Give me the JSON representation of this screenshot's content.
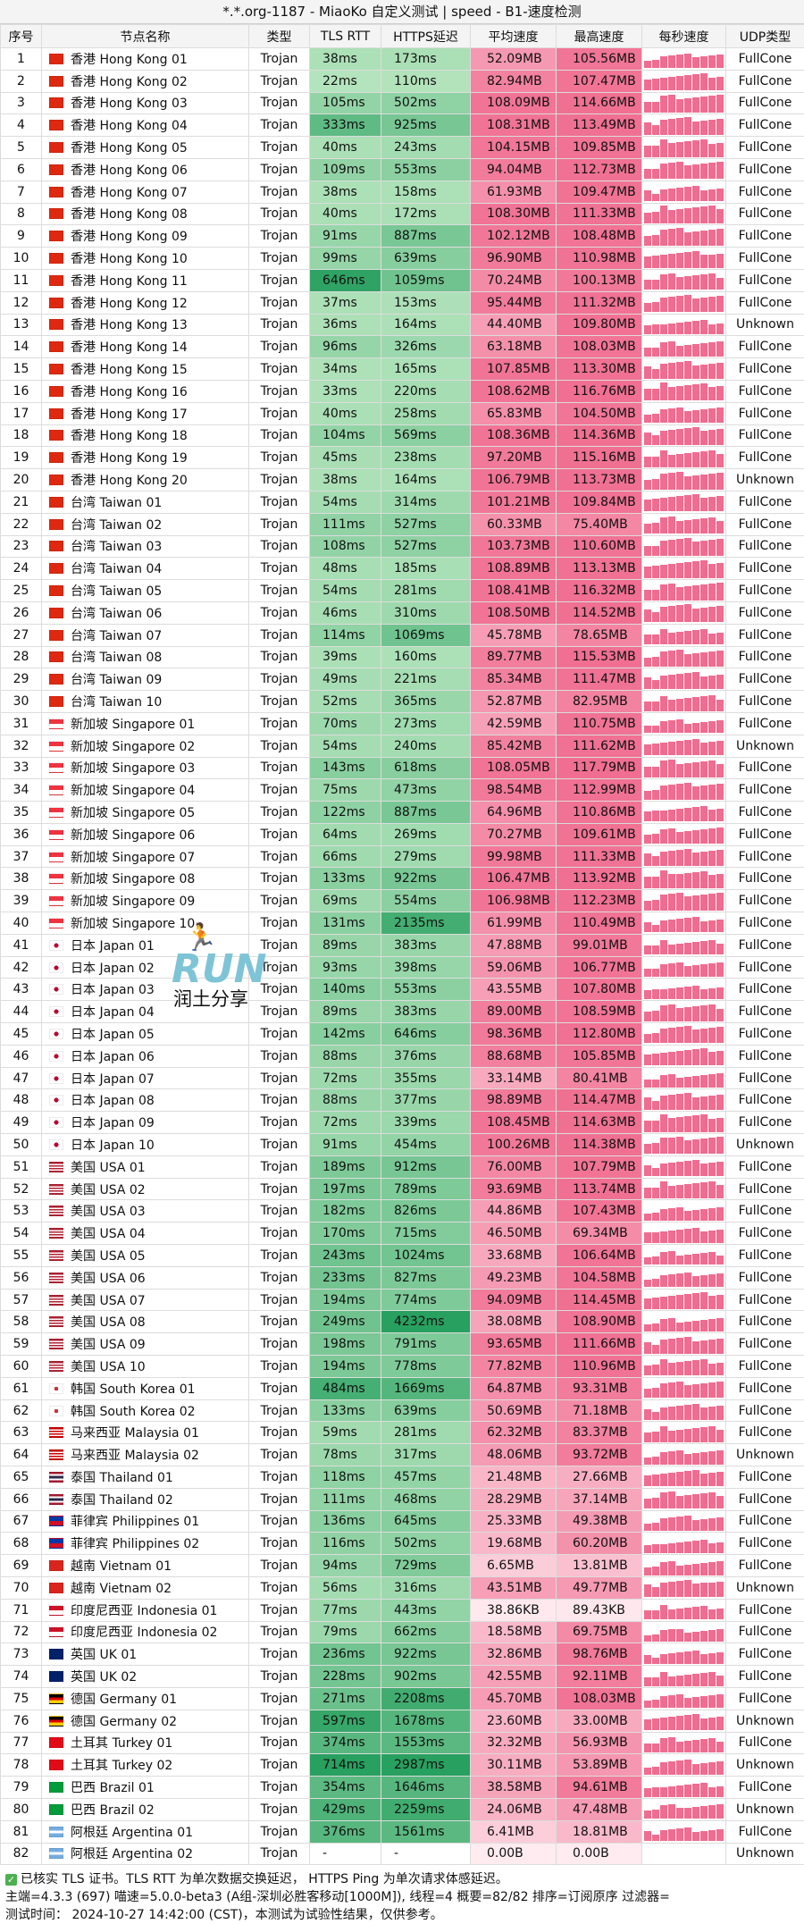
{
  "window": {
    "title": "*.*.org-1187 - MiaoKo 自定义测试 | speed - B1-速度检测"
  },
  "columns": [
    "序号",
    "节点名称",
    "类型",
    "TLS RTT",
    "HTTPS延迟",
    "平均速度",
    "最高速度",
    "每秒速度",
    "UDP类型"
  ],
  "colors": {
    "pink_bar": "#f06c90",
    "header_bg": "#f4f4f4"
  },
  "logo": {
    "runner": "🏃",
    "text": "RUN",
    "caption": "润土分享"
  },
  "rows": [
    {
      "idx": "1",
      "region": "hk",
      "name": "香港 Hong Kong 01",
      "type": "Trojan",
      "tls": "38ms",
      "https": "173ms",
      "avg": "52.09MB",
      "max": "105.56MB",
      "udp": "FullCone"
    },
    {
      "idx": "2",
      "region": "hk",
      "name": "香港 Hong Kong 02",
      "type": "Trojan",
      "tls": "22ms",
      "https": "110ms",
      "avg": "82.94MB",
      "max": "107.47MB",
      "udp": "FullCone"
    },
    {
      "idx": "3",
      "region": "hk",
      "name": "香港 Hong Kong 03",
      "type": "Trojan",
      "tls": "105ms",
      "https": "502ms",
      "avg": "108.09MB",
      "max": "114.66MB",
      "udp": "FullCone"
    },
    {
      "idx": "4",
      "region": "hk",
      "name": "香港 Hong Kong 04",
      "type": "Trojan",
      "tls": "333ms",
      "https": "925ms",
      "avg": "108.31MB",
      "max": "113.49MB",
      "udp": "FullCone"
    },
    {
      "idx": "5",
      "region": "hk",
      "name": "香港 Hong Kong 05",
      "type": "Trojan",
      "tls": "40ms",
      "https": "243ms",
      "avg": "104.15MB",
      "max": "109.85MB",
      "udp": "FullCone"
    },
    {
      "idx": "6",
      "region": "hk",
      "name": "香港 Hong Kong 06",
      "type": "Trojan",
      "tls": "109ms",
      "https": "553ms",
      "avg": "94.04MB",
      "max": "112.73MB",
      "udp": "FullCone"
    },
    {
      "idx": "7",
      "region": "hk",
      "name": "香港 Hong Kong 07",
      "type": "Trojan",
      "tls": "38ms",
      "https": "158ms",
      "avg": "61.93MB",
      "max": "109.47MB",
      "udp": "FullCone"
    },
    {
      "idx": "8",
      "region": "hk",
      "name": "香港 Hong Kong 08",
      "type": "Trojan",
      "tls": "40ms",
      "https": "172ms",
      "avg": "108.30MB",
      "max": "111.33MB",
      "udp": "FullCone"
    },
    {
      "idx": "9",
      "region": "hk",
      "name": "香港 Hong Kong 09",
      "type": "Trojan",
      "tls": "91ms",
      "https": "887ms",
      "avg": "102.12MB",
      "max": "108.48MB",
      "udp": "FullCone"
    },
    {
      "idx": "10",
      "region": "hk",
      "name": "香港 Hong Kong 10",
      "type": "Trojan",
      "tls": "99ms",
      "https": "639ms",
      "avg": "96.90MB",
      "max": "110.98MB",
      "udp": "FullCone"
    },
    {
      "idx": "11",
      "region": "hk",
      "name": "香港 Hong Kong 11",
      "type": "Trojan",
      "tls": "646ms",
      "https": "1059ms",
      "avg": "70.24MB",
      "max": "100.13MB",
      "udp": "FullCone"
    },
    {
      "idx": "12",
      "region": "hk",
      "name": "香港 Hong Kong 12",
      "type": "Trojan",
      "tls": "37ms",
      "https": "153ms",
      "avg": "95.44MB",
      "max": "111.32MB",
      "udp": "FullCone"
    },
    {
      "idx": "13",
      "region": "hk",
      "name": "香港 Hong Kong 13",
      "type": "Trojan",
      "tls": "36ms",
      "https": "164ms",
      "avg": "44.40MB",
      "max": "109.80MB",
      "udp": "Unknown"
    },
    {
      "idx": "14",
      "region": "hk",
      "name": "香港 Hong Kong 14",
      "type": "Trojan",
      "tls": "96ms",
      "https": "326ms",
      "avg": "63.18MB",
      "max": "108.03MB",
      "udp": "FullCone"
    },
    {
      "idx": "15",
      "region": "hk",
      "name": "香港 Hong Kong 15",
      "type": "Trojan",
      "tls": "34ms",
      "https": "165ms",
      "avg": "107.85MB",
      "max": "113.30MB",
      "udp": "FullCone"
    },
    {
      "idx": "16",
      "region": "hk",
      "name": "香港 Hong Kong 16",
      "type": "Trojan",
      "tls": "33ms",
      "https": "220ms",
      "avg": "108.62MB",
      "max": "116.76MB",
      "udp": "FullCone"
    },
    {
      "idx": "17",
      "region": "hk",
      "name": "香港 Hong Kong 17",
      "type": "Trojan",
      "tls": "40ms",
      "https": "258ms",
      "avg": "65.83MB",
      "max": "104.50MB",
      "udp": "FullCone"
    },
    {
      "idx": "18",
      "region": "hk",
      "name": "香港 Hong Kong 18",
      "type": "Trojan",
      "tls": "104ms",
      "https": "569ms",
      "avg": "108.36MB",
      "max": "114.36MB",
      "udp": "FullCone"
    },
    {
      "idx": "19",
      "region": "hk",
      "name": "香港 Hong Kong 19",
      "type": "Trojan",
      "tls": "45ms",
      "https": "238ms",
      "avg": "97.20MB",
      "max": "115.16MB",
      "udp": "FullCone"
    },
    {
      "idx": "20",
      "region": "hk",
      "name": "香港 Hong Kong 20",
      "type": "Trojan",
      "tls": "38ms",
      "https": "164ms",
      "avg": "106.79MB",
      "max": "113.73MB",
      "udp": "Unknown"
    },
    {
      "idx": "21",
      "region": "tw",
      "name": "台湾 Taiwan 01",
      "type": "Trojan",
      "tls": "54ms",
      "https": "314ms",
      "avg": "101.21MB",
      "max": "109.84MB",
      "udp": "FullCone"
    },
    {
      "idx": "22",
      "region": "tw",
      "name": "台湾 Taiwan 02",
      "type": "Trojan",
      "tls": "111ms",
      "https": "527ms",
      "avg": "60.33MB",
      "max": "75.40MB",
      "udp": "FullCone"
    },
    {
      "idx": "23",
      "region": "tw",
      "name": "台湾 Taiwan 03",
      "type": "Trojan",
      "tls": "108ms",
      "https": "527ms",
      "avg": "103.73MB",
      "max": "110.60MB",
      "udp": "FullCone"
    },
    {
      "idx": "24",
      "region": "tw",
      "name": "台湾 Taiwan 04",
      "type": "Trojan",
      "tls": "48ms",
      "https": "185ms",
      "avg": "108.89MB",
      "max": "113.13MB",
      "udp": "FullCone"
    },
    {
      "idx": "25",
      "region": "tw",
      "name": "台湾 Taiwan 05",
      "type": "Trojan",
      "tls": "54ms",
      "https": "281ms",
      "avg": "108.41MB",
      "max": "116.32MB",
      "udp": "FullCone"
    },
    {
      "idx": "26",
      "region": "tw",
      "name": "台湾 Taiwan 06",
      "type": "Trojan",
      "tls": "46ms",
      "https": "310ms",
      "avg": "108.50MB",
      "max": "114.52MB",
      "udp": "FullCone"
    },
    {
      "idx": "27",
      "region": "tw",
      "name": "台湾 Taiwan 07",
      "type": "Trojan",
      "tls": "114ms",
      "https": "1069ms",
      "avg": "45.78MB",
      "max": "78.65MB",
      "udp": "FullCone"
    },
    {
      "idx": "28",
      "region": "tw",
      "name": "台湾 Taiwan 08",
      "type": "Trojan",
      "tls": "39ms",
      "https": "160ms",
      "avg": "89.77MB",
      "max": "115.53MB",
      "udp": "FullCone"
    },
    {
      "idx": "29",
      "region": "tw",
      "name": "台湾 Taiwan 09",
      "type": "Trojan",
      "tls": "49ms",
      "https": "221ms",
      "avg": "85.34MB",
      "max": "111.47MB",
      "udp": "FullCone"
    },
    {
      "idx": "30",
      "region": "tw",
      "name": "台湾 Taiwan 10",
      "type": "Trojan",
      "tls": "52ms",
      "https": "365ms",
      "avg": "52.87MB",
      "max": "82.95MB",
      "udp": "FullCone"
    },
    {
      "idx": "31",
      "region": "sg",
      "name": "新加坡 Singapore 01",
      "type": "Trojan",
      "tls": "70ms",
      "https": "273ms",
      "avg": "42.59MB",
      "max": "110.75MB",
      "udp": "FullCone"
    },
    {
      "idx": "32",
      "region": "sg",
      "name": "新加坡 Singapore 02",
      "type": "Trojan",
      "tls": "54ms",
      "https": "240ms",
      "avg": "85.42MB",
      "max": "111.62MB",
      "udp": "Unknown"
    },
    {
      "idx": "33",
      "region": "sg",
      "name": "新加坡 Singapore 03",
      "type": "Trojan",
      "tls": "143ms",
      "https": "618ms",
      "avg": "108.05MB",
      "max": "117.79MB",
      "udp": "FullCone"
    },
    {
      "idx": "34",
      "region": "sg",
      "name": "新加坡 Singapore 04",
      "type": "Trojan",
      "tls": "75ms",
      "https": "473ms",
      "avg": "98.54MB",
      "max": "112.99MB",
      "udp": "FullCone"
    },
    {
      "idx": "35",
      "region": "sg",
      "name": "新加坡 Singapore 05",
      "type": "Trojan",
      "tls": "122ms",
      "https": "887ms",
      "avg": "64.96MB",
      "max": "110.86MB",
      "udp": "FullCone"
    },
    {
      "idx": "36",
      "region": "sg",
      "name": "新加坡 Singapore 06",
      "type": "Trojan",
      "tls": "64ms",
      "https": "269ms",
      "avg": "70.27MB",
      "max": "109.61MB",
      "udp": "FullCone"
    },
    {
      "idx": "37",
      "region": "sg",
      "name": "新加坡 Singapore 07",
      "type": "Trojan",
      "tls": "66ms",
      "https": "279ms",
      "avg": "99.98MB",
      "max": "111.33MB",
      "udp": "FullCone"
    },
    {
      "idx": "38",
      "region": "sg",
      "name": "新加坡 Singapore 08",
      "type": "Trojan",
      "tls": "133ms",
      "https": "922ms",
      "avg": "106.47MB",
      "max": "113.92MB",
      "udp": "FullCone"
    },
    {
      "idx": "39",
      "region": "sg",
      "name": "新加坡 Singapore 09",
      "type": "Trojan",
      "tls": "69ms",
      "https": "554ms",
      "avg": "106.98MB",
      "max": "112.23MB",
      "udp": "FullCone"
    },
    {
      "idx": "40",
      "region": "sg",
      "name": "新加坡 Singapore 10",
      "type": "Trojan",
      "tls": "131ms",
      "https": "2135ms",
      "avg": "61.99MB",
      "max": "110.49MB",
      "udp": "FullCone"
    },
    {
      "idx": "41",
      "region": "jp",
      "name": "日本 Japan 01",
      "type": "Trojan",
      "tls": "89ms",
      "https": "383ms",
      "avg": "47.88MB",
      "max": "99.01MB",
      "udp": "FullCone"
    },
    {
      "idx": "42",
      "region": "jp",
      "name": "日本 Japan 02",
      "type": "Trojan",
      "tls": "93ms",
      "https": "398ms",
      "avg": "59.06MB",
      "max": "106.77MB",
      "udp": "FullCone"
    },
    {
      "idx": "43",
      "region": "jp",
      "name": "日本 Japan 03",
      "type": "Trojan",
      "tls": "140ms",
      "https": "553ms",
      "avg": "43.55MB",
      "max": "107.80MB",
      "udp": "FullCone"
    },
    {
      "idx": "44",
      "region": "jp",
      "name": "日本 Japan 04",
      "type": "Trojan",
      "tls": "89ms",
      "https": "383ms",
      "avg": "89.00MB",
      "max": "108.59MB",
      "udp": "FullCone"
    },
    {
      "idx": "45",
      "region": "jp",
      "name": "日本 Japan 05",
      "type": "Trojan",
      "tls": "142ms",
      "https": "646ms",
      "avg": "98.36MB",
      "max": "112.80MB",
      "udp": "FullCone"
    },
    {
      "idx": "46",
      "region": "jp",
      "name": "日本 Japan 06",
      "type": "Trojan",
      "tls": "88ms",
      "https": "376ms",
      "avg": "88.68MB",
      "max": "105.85MB",
      "udp": "FullCone"
    },
    {
      "idx": "47",
      "region": "jp",
      "name": "日本 Japan 07",
      "type": "Trojan",
      "tls": "72ms",
      "https": "355ms",
      "avg": "33.14MB",
      "max": "80.41MB",
      "udp": "FullCone"
    },
    {
      "idx": "48",
      "region": "jp",
      "name": "日本 Japan 08",
      "type": "Trojan",
      "tls": "88ms",
      "https": "377ms",
      "avg": "98.89MB",
      "max": "114.47MB",
      "udp": "FullCone"
    },
    {
      "idx": "49",
      "region": "jp",
      "name": "日本 Japan 09",
      "type": "Trojan",
      "tls": "72ms",
      "https": "339ms",
      "avg": "108.45MB",
      "max": "114.63MB",
      "udp": "FullCone"
    },
    {
      "idx": "50",
      "region": "jp",
      "name": "日本 Japan 10",
      "type": "Trojan",
      "tls": "91ms",
      "https": "454ms",
      "avg": "100.26MB",
      "max": "114.38MB",
      "udp": "Unknown"
    },
    {
      "idx": "51",
      "region": "us",
      "name": "美国 USA 01",
      "type": "Trojan",
      "tls": "189ms",
      "https": "912ms",
      "avg": "76.00MB",
      "max": "107.79MB",
      "udp": "FullCone"
    },
    {
      "idx": "52",
      "region": "us",
      "name": "美国 USA 02",
      "type": "Trojan",
      "tls": "197ms",
      "https": "789ms",
      "avg": "93.69MB",
      "max": "113.74MB",
      "udp": "FullCone"
    },
    {
      "idx": "53",
      "region": "us",
      "name": "美国 USA 03",
      "type": "Trojan",
      "tls": "182ms",
      "https": "826ms",
      "avg": "44.86MB",
      "max": "107.43MB",
      "udp": "FullCone"
    },
    {
      "idx": "54",
      "region": "us",
      "name": "美国 USA 04",
      "type": "Trojan",
      "tls": "170ms",
      "https": "715ms",
      "avg": "46.50MB",
      "max": "69.34MB",
      "udp": "FullCone"
    },
    {
      "idx": "55",
      "region": "us",
      "name": "美国 USA 05",
      "type": "Trojan",
      "tls": "243ms",
      "https": "1024ms",
      "avg": "33.68MB",
      "max": "106.64MB",
      "udp": "FullCone"
    },
    {
      "idx": "56",
      "region": "us",
      "name": "美国 USA 06",
      "type": "Trojan",
      "tls": "233ms",
      "https": "827ms",
      "avg": "49.23MB",
      "max": "104.58MB",
      "udp": "FullCone"
    },
    {
      "idx": "57",
      "region": "us",
      "name": "美国 USA 07",
      "type": "Trojan",
      "tls": "194ms",
      "https": "774ms",
      "avg": "94.09MB",
      "max": "114.45MB",
      "udp": "FullCone"
    },
    {
      "idx": "58",
      "region": "us",
      "name": "美国 USA 08",
      "type": "Trojan",
      "tls": "249ms",
      "https": "4232ms",
      "avg": "38.08MB",
      "max": "108.90MB",
      "udp": "FullCone"
    },
    {
      "idx": "59",
      "region": "us",
      "name": "美国 USA 09",
      "type": "Trojan",
      "tls": "198ms",
      "https": "791ms",
      "avg": "93.65MB",
      "max": "111.66MB",
      "udp": "FullCone"
    },
    {
      "idx": "60",
      "region": "us",
      "name": "美国 USA 10",
      "type": "Trojan",
      "tls": "194ms",
      "https": "778ms",
      "avg": "77.82MB",
      "max": "110.96MB",
      "udp": "FullCone"
    },
    {
      "idx": "61",
      "region": "kr",
      "name": "韩国 South Korea 01",
      "type": "Trojan",
      "tls": "484ms",
      "https": "1669ms",
      "avg": "64.87MB",
      "max": "93.31MB",
      "udp": "FullCone"
    },
    {
      "idx": "62",
      "region": "kr",
      "name": "韩国 South Korea 02",
      "type": "Trojan",
      "tls": "133ms",
      "https": "639ms",
      "avg": "50.69MB",
      "max": "71.18MB",
      "udp": "FullCone"
    },
    {
      "idx": "63",
      "region": "my",
      "name": "马来西亚 Malaysia 01",
      "type": "Trojan",
      "tls": "59ms",
      "https": "281ms",
      "avg": "62.32MB",
      "max": "83.37MB",
      "udp": "FullCone"
    },
    {
      "idx": "64",
      "region": "my",
      "name": "马来西亚 Malaysia 02",
      "type": "Trojan",
      "tls": "78ms",
      "https": "317ms",
      "avg": "48.06MB",
      "max": "93.72MB",
      "udp": "Unknown"
    },
    {
      "idx": "65",
      "region": "th",
      "name": "泰国 Thailand 01",
      "type": "Trojan",
      "tls": "118ms",
      "https": "457ms",
      "avg": "21.48MB",
      "max": "27.66MB",
      "udp": "FullCone"
    },
    {
      "idx": "66",
      "region": "th",
      "name": "泰国 Thailand 02",
      "type": "Trojan",
      "tls": "111ms",
      "https": "468ms",
      "avg": "28.29MB",
      "max": "37.14MB",
      "udp": "FullCone"
    },
    {
      "idx": "67",
      "region": "ph",
      "name": "菲律宾 Philippines 01",
      "type": "Trojan",
      "tls": "136ms",
      "https": "645ms",
      "avg": "25.33MB",
      "max": "49.38MB",
      "udp": "FullCone"
    },
    {
      "idx": "68",
      "region": "ph",
      "name": "菲律宾 Philippines 02",
      "type": "Trojan",
      "tls": "116ms",
      "https": "502ms",
      "avg": "19.68MB",
      "max": "60.20MB",
      "udp": "FullCone"
    },
    {
      "idx": "69",
      "region": "vn",
      "name": "越南 Vietnam 01",
      "type": "Trojan",
      "tls": "94ms",
      "https": "729ms",
      "avg": "6.65MB",
      "max": "13.81MB",
      "udp": "FullCone"
    },
    {
      "idx": "70",
      "region": "vn",
      "name": "越南 Vietnam 02",
      "type": "Trojan",
      "tls": "56ms",
      "https": "316ms",
      "avg": "43.51MB",
      "max": "49.77MB",
      "udp": "Unknown"
    },
    {
      "idx": "71",
      "region": "id",
      "name": "印度尼西亚 Indonesia 01",
      "type": "Trojan",
      "tls": "77ms",
      "https": "443ms",
      "avg": "38.86KB",
      "max": "89.43KB",
      "udp": "FullCone"
    },
    {
      "idx": "72",
      "region": "id",
      "name": "印度尼西亚 Indonesia 02",
      "type": "Trojan",
      "tls": "79ms",
      "https": "662ms",
      "avg": "18.58MB",
      "max": "69.75MB",
      "udp": "FullCone"
    },
    {
      "idx": "73",
      "region": "uk",
      "name": "英国 UK 01",
      "type": "Trojan",
      "tls": "236ms",
      "https": "922ms",
      "avg": "32.86MB",
      "max": "98.76MB",
      "udp": "FullCone"
    },
    {
      "idx": "74",
      "region": "uk",
      "name": "英国 UK 02",
      "type": "Trojan",
      "tls": "228ms",
      "https": "902ms",
      "avg": "42.55MB",
      "max": "92.11MB",
      "udp": "FullCone"
    },
    {
      "idx": "75",
      "region": "de",
      "name": "德国 Germany 01",
      "type": "Trojan",
      "tls": "271ms",
      "https": "2208ms",
      "avg": "45.70MB",
      "max": "108.03MB",
      "udp": "FullCone"
    },
    {
      "idx": "76",
      "region": "de",
      "name": "德国 Germany 02",
      "type": "Trojan",
      "tls": "597ms",
      "https": "1678ms",
      "avg": "23.60MB",
      "max": "33.00MB",
      "udp": "Unknown"
    },
    {
      "idx": "77",
      "region": "tr",
      "name": "土耳其 Turkey 01",
      "type": "Trojan",
      "tls": "374ms",
      "https": "1553ms",
      "avg": "32.32MB",
      "max": "56.93MB",
      "udp": "FullCone"
    },
    {
      "idx": "78",
      "region": "tr",
      "name": "土耳其 Turkey 02",
      "type": "Trojan",
      "tls": "714ms",
      "https": "2987ms",
      "avg": "30.11MB",
      "max": "53.89MB",
      "udp": "Unknown"
    },
    {
      "idx": "79",
      "region": "br",
      "name": "巴西 Brazil 01",
      "type": "Trojan",
      "tls": "354ms",
      "https": "1646ms",
      "avg": "38.58MB",
      "max": "94.61MB",
      "udp": "FullCone"
    },
    {
      "idx": "80",
      "region": "br",
      "name": "巴西 Brazil 02",
      "type": "Trojan",
      "tls": "429ms",
      "https": "2259ms",
      "avg": "24.06MB",
      "max": "47.48MB",
      "udp": "Unknown"
    },
    {
      "idx": "81",
      "region": "ar",
      "name": "阿根廷 Argentina 01",
      "type": "Trojan",
      "tls": "376ms",
      "https": "1561ms",
      "avg": "6.41MB",
      "max": "18.81MB",
      "udp": "FullCone"
    },
    {
      "idx": "82",
      "region": "ar",
      "name": "阿根廷 Argentina 02",
      "type": "Trojan",
      "tls": "-",
      "https": "-",
      "avg": "0.00B",
      "max": "0.00B",
      "udp": "Unknown"
    }
  ],
  "footer": {
    "line1": "已核实 TLS 证书。TLS RTT 为单次数据交换延迟， HTTPS Ping 为单次请求体感延迟。",
    "line2": "主端=4.3.3 (697) 喵速=5.0.0-beta3 (A组-深圳必胜客移动[1000M]), 线程=4 概要=82/82 排序=订阅原序 过滤器=",
    "line3": "测试时间： 2024-10-27 14:42:00 (CST)，本测试为试验性结果，仅供参考。"
  }
}
